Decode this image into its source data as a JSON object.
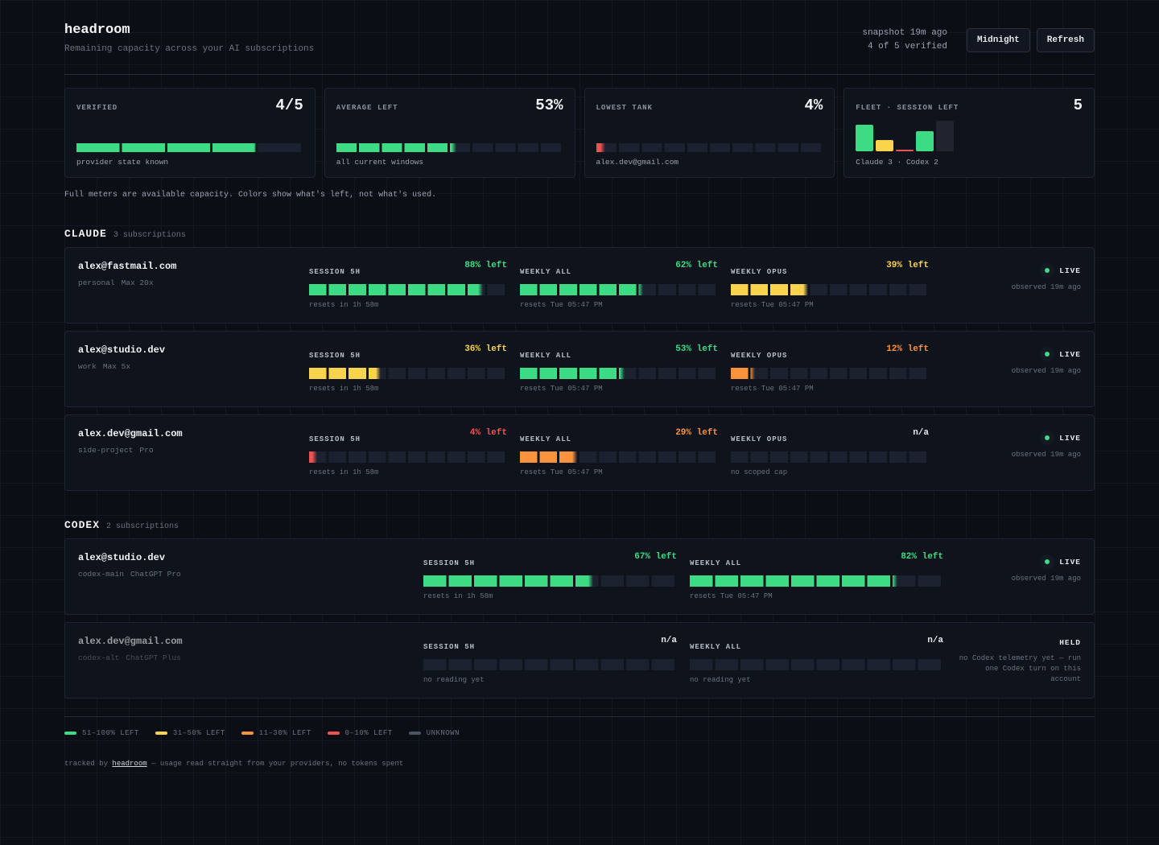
{
  "header": {
    "title": "headroom",
    "subtitle": "Remaining capacity across your AI subscriptions",
    "snapshot": "snapshot 19m ago",
    "verified": "4 of 5 verified",
    "buttons": [
      "Midnight",
      "Refresh"
    ]
  },
  "summary": [
    {
      "label": "VERIFIED",
      "value_label": "4/5",
      "value": 4,
      "max": 5,
      "color": "#3ddc84",
      "caption": "provider state known"
    },
    {
      "label": "AVERAGE LEFT",
      "value_label": "53%",
      "value": 53,
      "max": 100,
      "color": "#3ddc84",
      "caption": "all current windows"
    },
    {
      "label": "LOWEST TANK",
      "value_label": "4%",
      "value": 4,
      "max": 100,
      "color": "#f05252",
      "caption": "alex.dev@gmail.com"
    },
    {
      "label": "FLEET · SESSION LEFT",
      "value": 5,
      "caption": "Claude 3 · Codex 2"
    }
  ],
  "note": "Full meters are available capacity. Colors show what's left, not what's used.",
  "sections": [
    {
      "name": "CLAUDE",
      "count": "3 subscriptions",
      "rows": [
        {
          "email": "alex@fastmail.com",
          "tag": "personal",
          "plan": "Max 20x",
          "status": "LIVE",
          "status_color": "#3ddc84",
          "observed": "observed 19m ago",
          "meters": [
            {
              "label": "SESSION 5H",
              "left": 88,
              "left_label": "88% left",
              "color": "#3ddc84",
              "reset": "resets in 1h 58m"
            },
            {
              "label": "WEEKLY ALL",
              "left": 62,
              "left_label": "62% left",
              "color": "#3ddc84",
              "reset": "resets Tue 05:47 PM"
            },
            {
              "label": "WEEKLY OPUS",
              "left": 39,
              "left_label": "39% left",
              "color": "#fcd34d",
              "reset": "resets Tue 05:47 PM"
            }
          ]
        },
        {
          "email": "alex@studio.dev",
          "tag": "work",
          "plan": "Max 5x",
          "status": "LIVE",
          "status_color": "#3ddc84",
          "observed": "observed 19m ago",
          "meters": [
            {
              "label": "SESSION 5H",
              "left": 36,
              "left_label": "36% left",
              "color": "#fcd34d",
              "reset": "resets in 1h 58m"
            },
            {
              "label": "WEEKLY ALL",
              "left": 53,
              "left_label": "53% left",
              "color": "#3ddc84",
              "reset": "resets Tue 05:47 PM"
            },
            {
              "label": "WEEKLY OPUS",
              "left": 12,
              "left_label": "12% left",
              "color": "#fb923c",
              "reset": "resets Tue 05:47 PM"
            }
          ]
        },
        {
          "email": "alex.dev@gmail.com",
          "tag": "side-project",
          "plan": "Pro",
          "status": "LIVE",
          "status_color": "#3ddc84",
          "observed": "observed 19m ago",
          "meters": [
            {
              "label": "SESSION 5H",
              "left": 4,
              "left_label": "4% left",
              "color": "#f05252",
              "reset": "resets in 1h 58m"
            },
            {
              "label": "WEEKLY ALL",
              "left": 29,
              "left_label": "29% left",
              "color": "#fb923c",
              "reset": "resets Tue 05:47 PM"
            },
            {
              "label": "WEEKLY OPUS",
              "left": null,
              "left_label": "n/a",
              "reset": "no scoped cap"
            }
          ]
        }
      ]
    },
    {
      "name": "CODEX",
      "count": "2 subscriptions",
      "rows": [
        {
          "email": "alex@studio.dev",
          "tag": "codex-main",
          "plan": "ChatGPT Pro",
          "status": "LIVE",
          "status_color": "#3ddc84",
          "observed": "observed 19m ago",
          "meters": [
            {
              "label": "SESSION 5H",
              "left": 67,
              "left_label": "67% left",
              "color": "#3ddc84",
              "reset": "resets in 1h 58m"
            },
            {
              "label": "WEEKLY ALL",
              "left": 82,
              "left_label": "82% left",
              "color": "#3ddc84",
              "reset": "resets Tue 05:47 PM"
            }
          ]
        },
        {
          "email": "alex.dev@gmail.com",
          "tag": "codex-alt",
          "plan": "ChatGPT Plus",
          "status": "HELD",
          "observed": "no Codex telemetry yet — run one Codex turn on this account",
          "meters": [
            {
              "label": "SESSION 5H",
              "left": null,
              "left_label": "n/a",
              "reset": "no reading yet"
            },
            {
              "label": "WEEKLY ALL",
              "left": null,
              "left_label": "n/a",
              "reset": "no reading yet"
            }
          ]
        }
      ]
    }
  ],
  "legend": [
    {
      "label": "51–100% LEFT",
      "color": "#3ddc84"
    },
    {
      "label": "31–50% LEFT",
      "color": "#fcd34d"
    },
    {
      "label": "11–30% LEFT",
      "color": "#fb923c"
    },
    {
      "label": "0–10% LEFT",
      "color": "#f05252"
    },
    {
      "label": "UNKNOWN",
      "color": "#4b5563"
    }
  ],
  "footer": {
    "prefix": "tracked by",
    "link": "headroom",
    "suffix": "— usage read straight from your providers, no tokens spent"
  }
}
